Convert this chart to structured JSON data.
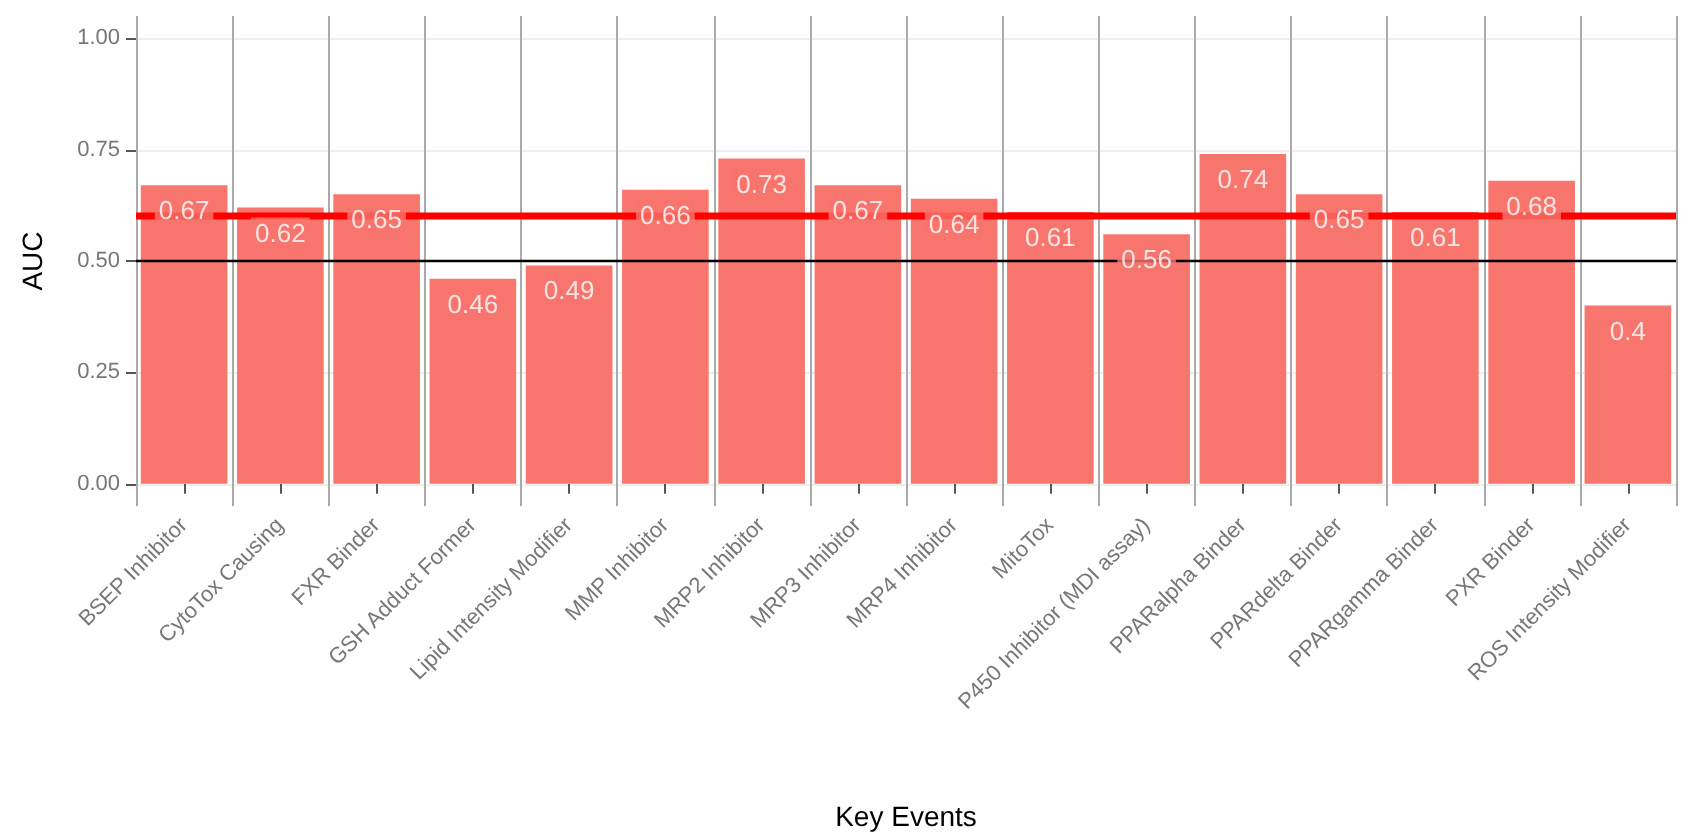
{
  "chart_data": {
    "type": "bar",
    "xlabel": "Key Events",
    "ylabel": "AUC",
    "categories": [
      "BSEP Inhibitor",
      "CytoTox Causing",
      "FXR Binder",
      "GSH Adduct Former",
      "Lipid Intensity Modifier",
      "MMP Inhibitor",
      "MRP2 Inhibitor",
      "MRP3 Inhibitor",
      "MRP4 Inhibitor",
      "MitoTox",
      "P450 Inhibitor (MDI assay)",
      "PPARalpha Binder",
      "PPARdelta Binder",
      "PPARgamma Binder",
      "PXR Binder",
      "ROS Intensity Modifier"
    ],
    "values": [
      0.67,
      0.62,
      0.65,
      0.46,
      0.49,
      0.66,
      0.73,
      0.67,
      0.64,
      0.61,
      0.56,
      0.74,
      0.65,
      0.61,
      0.68,
      0.4
    ],
    "color": "#f8766d",
    "data_labels": true,
    "ylim": [
      -0.05,
      1.05
    ],
    "yticks": [
      {
        "value": 0,
        "label": "0.00"
      },
      {
        "value": 0.25,
        "label": "0.25"
      },
      {
        "value": 0.5,
        "label": "0.50"
      },
      {
        "value": 0.75,
        "label": "0.75"
      },
      {
        "value": 1,
        "label": "1.00"
      }
    ],
    "grid": true,
    "ref_lines": [
      {
        "axis": "y",
        "value": 0.6,
        "color": "#ff0000",
        "line_style": "solid"
      },
      {
        "axis": "y",
        "value": 0.5,
        "color": "#000000",
        "line_style": "solid"
      }
    ]
  }
}
